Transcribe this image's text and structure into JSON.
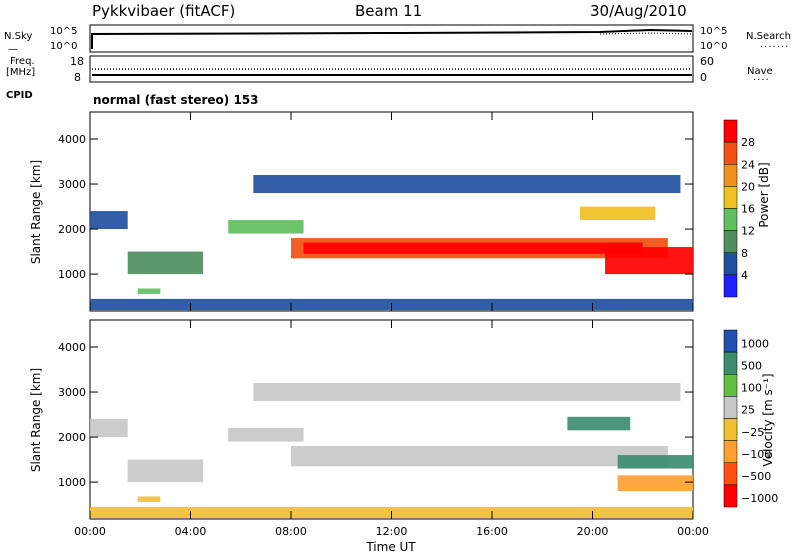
{
  "header": {
    "station": "Pykkvibaer (fitACF)",
    "beam": "Beam 11",
    "date": "30/Aug/2010"
  },
  "top_panels": {
    "nsky_label": "N.Sky",
    "nsearch_label": "N.Search",
    "noise_ticks": [
      "10^5",
      "10^0"
    ],
    "freq_label": "Freq.",
    "freq_unit": "[MHz]",
    "freq_ticks": [
      "18",
      "8"
    ],
    "nave_label": "Nave",
    "nave_ticks": [
      "60",
      "0"
    ],
    "cpid_label": "CPID",
    "cpid_text": "normal (fast stereo) 153"
  },
  "colors": {
    "power": [
      "#2020ff",
      "#2050a0",
      "#4f8f60",
      "#5fc05f",
      "#f0c020",
      "#f09020",
      "#f05010",
      "#ff0000"
    ],
    "velocity": [
      "#ff0000",
      "#ff5010",
      "#ffa030",
      "#f0c030",
      "#c8c8c8",
      "#60c040",
      "#3c8c70",
      "#2050b0"
    ]
  },
  "chart_data": [
    {
      "type": "heatmap",
      "name": "power",
      "ylabel": "Slant Range [km]",
      "colorbar_label": "Power [dB]",
      "colorbar_ticks": [
        "28",
        "24",
        "20",
        "16",
        "12",
        "8",
        "4"
      ],
      "ylim": [
        180,
        4600
      ],
      "yticks": [
        "1000",
        "2000",
        "3000",
        "4000"
      ],
      "y_tick_values": [
        1000,
        2000,
        3000,
        4000
      ],
      "xlim": [
        0,
        24
      ],
      "xticks": [
        "00:00",
        "04:00",
        "08:00",
        "12:00",
        "16:00",
        "20:00",
        "00:00"
      ],
      "x_tick_values": [
        0,
        4,
        8,
        12,
        16,
        20,
        24
      ],
      "regions": [
        {
          "x": [
            0,
            1.5
          ],
          "y": [
            2000,
            2400
          ],
          "level": 1
        },
        {
          "x": [
            1.5,
            4.5
          ],
          "y": [
            1000,
            1500
          ],
          "level": 2
        },
        {
          "x": [
            1.9,
            2.8
          ],
          "y": [
            560,
            680
          ],
          "level": 3
        },
        {
          "x": [
            5.5,
            8.5
          ],
          "y": [
            1900,
            2200
          ],
          "level": 3
        },
        {
          "x": [
            8.0,
            23.0
          ],
          "y": [
            1350,
            1800
          ],
          "level": 6
        },
        {
          "x": [
            8.5,
            22.0
          ],
          "y": [
            1450,
            1700
          ],
          "level": 7
        },
        {
          "x": [
            6.5,
            23.5
          ],
          "y": [
            2800,
            3200
          ],
          "level": 1
        },
        {
          "x": [
            20.5,
            24.0
          ],
          "y": [
            1000,
            1600
          ],
          "level": 7
        },
        {
          "x": [
            19.5,
            22.5
          ],
          "y": [
            2200,
            2500
          ],
          "level": 4
        },
        {
          "x": [
            0,
            24
          ],
          "y": [
            200,
            450
          ],
          "level": 1
        }
      ]
    },
    {
      "type": "heatmap",
      "name": "velocity",
      "ylabel": "Slant Range [km]",
      "colorbar_label": "Velocity [m s⁻¹]",
      "colorbar_ticks": [
        "1000",
        "500",
        "100",
        "25",
        "−25",
        "−100",
        "−500",
        "−1000"
      ],
      "ylim": [
        180,
        4600
      ],
      "yticks": [
        "1000",
        "2000",
        "3000",
        "4000"
      ],
      "y_tick_values": [
        1000,
        2000,
        3000,
        4000
      ],
      "xlim": [
        0,
        24
      ],
      "xticks": [
        "00:00",
        "04:00",
        "08:00",
        "12:00",
        "16:00",
        "20:00",
        "00:00"
      ],
      "x_tick_values": [
        0,
        4,
        8,
        12,
        16,
        20,
        24
      ],
      "xlabel": "Time UT",
      "regions": [
        {
          "x": [
            0,
            1.5
          ],
          "y": [
            2000,
            2400
          ],
          "level": 4
        },
        {
          "x": [
            1.5,
            4.5
          ],
          "y": [
            1000,
            1500
          ],
          "level": 4
        },
        {
          "x": [
            1.9,
            2.8
          ],
          "y": [
            560,
            680
          ],
          "level": 3
        },
        {
          "x": [
            5.5,
            8.5
          ],
          "y": [
            1900,
            2200
          ],
          "level": 4
        },
        {
          "x": [
            8.0,
            23.0
          ],
          "y": [
            1350,
            1800
          ],
          "level": 4
        },
        {
          "x": [
            6.5,
            23.5
          ],
          "y": [
            2800,
            3200
          ],
          "level": 4
        },
        {
          "x": [
            19.0,
            21.5
          ],
          "y": [
            2150,
            2450
          ],
          "level": 6
        },
        {
          "x": [
            21.0,
            24.0
          ],
          "y": [
            1300,
            1600
          ],
          "level": 6
        },
        {
          "x": [
            21.0,
            24.0
          ],
          "y": [
            800,
            1150
          ],
          "level": 2
        },
        {
          "x": [
            0,
            24
          ],
          "y": [
            200,
            450
          ],
          "level": 3
        }
      ]
    }
  ]
}
